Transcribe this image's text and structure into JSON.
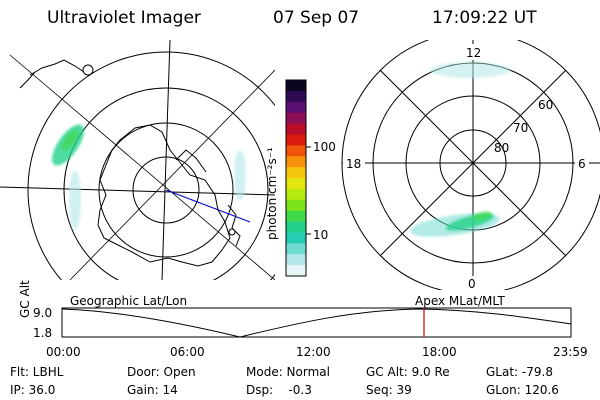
{
  "header": {
    "title": "Ultraviolet Imager",
    "date": "07 Sep 07",
    "time": "17:09:22 UT"
  },
  "colorbar": {
    "unit_label": "photon cm⁻²s⁻¹",
    "ticks": [
      "100",
      "10"
    ],
    "colors": [
      "#0d0622",
      "#2d0b52",
      "#5a0f72",
      "#8a0f55",
      "#b80d2a",
      "#dc1a10",
      "#f0540a",
      "#f7920a",
      "#f4c60c",
      "#e4e60e",
      "#b6eb12",
      "#7ee41a",
      "#3fd94a",
      "#22d28a",
      "#26cdb2",
      "#6edad0",
      "#b3e8e8",
      "#e6f5f6"
    ]
  },
  "polar_map": {
    "mlt_labels": [
      "12",
      "18",
      "6",
      "0"
    ],
    "lat_labels": [
      "60",
      "70",
      "80"
    ]
  },
  "timeline": {
    "left_label": "Geographic Lat/Lon",
    "right_label": "Apex  MLat/MLT",
    "axis_title": "GC Alt",
    "y_ticks": [
      "9.0",
      "1.8"
    ],
    "x_ticks": [
      "00:00",
      "06:00",
      "12:00",
      "18:00",
      "23:59"
    ],
    "marker_color": "#e00000"
  },
  "footer": {
    "row1": [
      "Flt: LBHL",
      "Door: Open",
      "Mode: Normal",
      "GC Alt: 9.0 Re",
      "GLat: -79.8"
    ],
    "row2": [
      "IP: 36.0",
      "Gain: 14",
      "Dsp:    -0.3",
      "Seq: 39",
      "GLon: 120.6"
    ]
  }
}
